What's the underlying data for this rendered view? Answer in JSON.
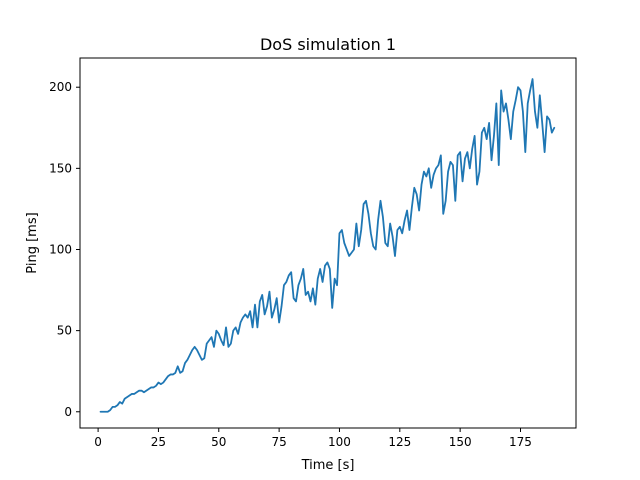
{
  "chart_data": {
    "type": "line",
    "title": "DoS simulation 1",
    "xlabel": "Time [s]",
    "ylabel": "Ping [ms]",
    "xlim": [
      -7.5,
      198
    ],
    "ylim": [
      -10,
      218
    ],
    "xticks": [
      0,
      25,
      50,
      75,
      100,
      125,
      150,
      175
    ],
    "yticks": [
      0,
      50,
      100,
      150,
      200
    ],
    "grid": false,
    "series": [
      {
        "color": "#1f77b4",
        "x": [
          1,
          2,
          3,
          4,
          5,
          6,
          7,
          8,
          9,
          10,
          11,
          12,
          13,
          14,
          15,
          16,
          17,
          18,
          19,
          20,
          21,
          22,
          23,
          24,
          25,
          26,
          27,
          28,
          29,
          30,
          31,
          32,
          33,
          34,
          35,
          36,
          37,
          38,
          39,
          40,
          41,
          42,
          43,
          44,
          45,
          46,
          47,
          48,
          49,
          50,
          51,
          52,
          53,
          54,
          55,
          56,
          57,
          58,
          59,
          60,
          61,
          62,
          63,
          64,
          65,
          66,
          67,
          68,
          69,
          70,
          71,
          72,
          73,
          74,
          75,
          76,
          77,
          78,
          79,
          80,
          81,
          82,
          83,
          84,
          85,
          86,
          87,
          88,
          89,
          90,
          91,
          92,
          93,
          94,
          95,
          96,
          97,
          98,
          99,
          100,
          101,
          102,
          103,
          104,
          105,
          106,
          107,
          108,
          109,
          110,
          111,
          112,
          113,
          114,
          115,
          116,
          117,
          118,
          119,
          120,
          121,
          122,
          123,
          124,
          125,
          126,
          127,
          128,
          129,
          130,
          131,
          132,
          133,
          134,
          135,
          136,
          137,
          138,
          139,
          140,
          141,
          142,
          143,
          144,
          145,
          146,
          147,
          148,
          149,
          150,
          151,
          152,
          153,
          154,
          155,
          156,
          157,
          158,
          159,
          160,
          161,
          162,
          163,
          164,
          165,
          166,
          167,
          168,
          169,
          170,
          171,
          172,
          173,
          174,
          175,
          176,
          177,
          178,
          179,
          180,
          181,
          182,
          183,
          184,
          185,
          186,
          187,
          188,
          189
        ],
        "values": [
          0,
          0,
          0,
          0,
          1,
          3,
          3,
          4,
          6,
          5,
          8,
          9,
          10,
          11,
          11,
          12,
          13,
          13,
          12,
          13,
          14,
          15,
          15,
          16,
          18,
          17,
          18,
          20,
          22,
          23,
          23,
          24,
          28,
          24,
          25,
          30,
          32,
          35,
          38,
          40,
          38,
          35,
          32,
          33,
          42,
          44,
          46,
          40,
          50,
          48,
          44,
          41,
          52,
          40,
          42,
          50,
          52,
          48,
          55,
          58,
          60,
          58,
          62,
          52,
          66,
          52,
          68,
          72,
          60,
          65,
          74,
          58,
          63,
          70,
          55,
          65,
          78,
          80,
          84,
          86,
          70,
          68,
          78,
          82,
          88,
          72,
          74,
          68,
          76,
          66,
          82,
          88,
          80,
          90,
          92,
          88,
          64,
          82,
          78,
          110,
          112,
          104,
          100,
          96,
          98,
          100,
          116,
          102,
          112,
          128,
          130,
          122,
          110,
          102,
          100,
          118,
          130,
          120,
          104,
          102,
          116,
          108,
          96,
          112,
          114,
          110,
          118,
          124,
          112,
          126,
          138,
          134,
          124,
          140,
          148,
          145,
          150,
          138,
          146,
          150,
          152,
          158,
          122,
          130,
          148,
          154,
          152,
          130,
          158,
          160,
          142,
          156,
          160,
          150,
          162,
          170,
          140,
          148,
          172,
          175,
          168,
          178,
          155,
          170,
          190,
          152,
          198,
          185,
          190,
          180,
          168,
          185,
          192,
          200,
          198,
          185,
          160,
          190,
          198,
          205,
          185,
          175,
          195,
          178,
          160,
          182,
          180,
          172,
          175
        ]
      }
    ]
  }
}
